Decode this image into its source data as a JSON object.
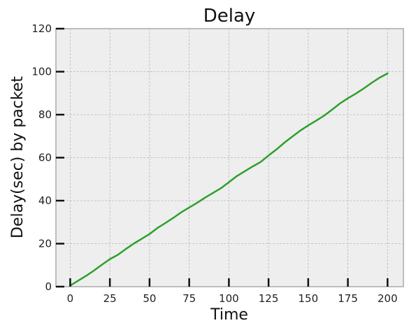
{
  "chart_data": {
    "type": "line",
    "title": "Delay",
    "xlabel": "Time",
    "ylabel": "Delay(sec) by packet",
    "xlim": [
      -9,
      210
    ],
    "ylim": [
      0,
      120
    ],
    "x_ticks": [
      0,
      25,
      50,
      75,
      100,
      125,
      150,
      175,
      200
    ],
    "y_ticks": [
      0,
      20,
      40,
      60,
      80,
      100,
      120
    ],
    "grid": true,
    "legend": "none",
    "colors": {
      "line": "#2ca02c",
      "plot_bg": "#eeeeee",
      "grid": "#b8b8b8",
      "spine": "#bdbdbd",
      "tick": "#111111"
    },
    "series": [
      {
        "x": [
          0,
          5,
          10,
          15,
          20,
          25,
          30,
          35,
          40,
          45,
          50,
          55,
          60,
          65,
          70,
          75,
          80,
          85,
          90,
          95,
          100,
          105,
          110,
          115,
          120,
          125,
          130,
          135,
          140,
          145,
          150,
          155,
          160,
          165,
          170,
          175,
          180,
          185,
          190,
          195,
          200
        ],
        "y": [
          0.5,
          2.8,
          5.0,
          7.5,
          10.2,
          12.8,
          14.8,
          17.5,
          20.0,
          22.2,
          24.5,
          27.3,
          29.6,
          32.0,
          34.6,
          36.8,
          39.0,
          41.4,
          43.6,
          45.8,
          48.6,
          51.4,
          53.7,
          55.9,
          58.0,
          61.0,
          63.8,
          67.0,
          69.8,
          72.6,
          75.0,
          77.2,
          79.5,
          82.3,
          85.2,
          87.6,
          89.8,
          92.2,
          94.8,
          97.2,
          99.2
        ]
      }
    ]
  }
}
